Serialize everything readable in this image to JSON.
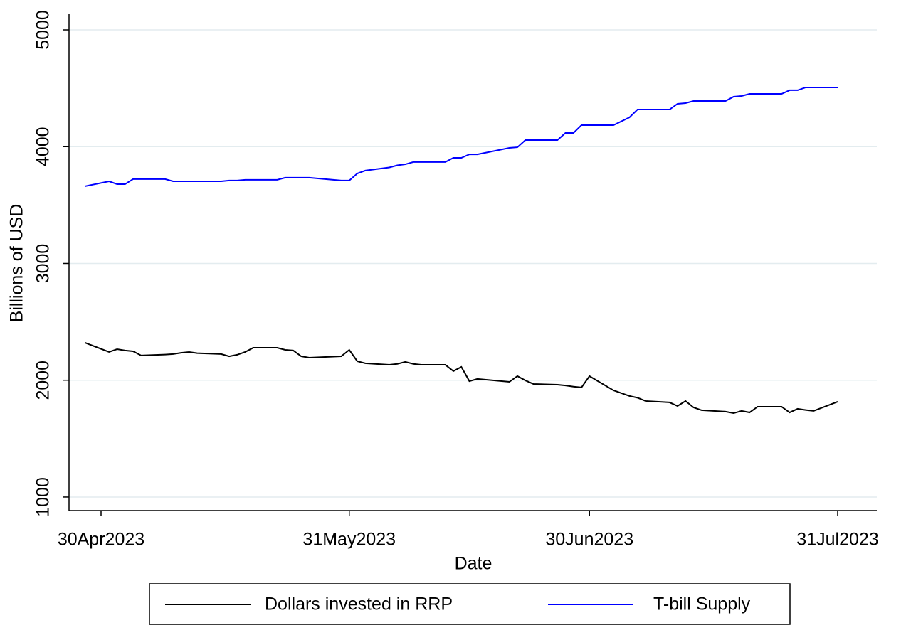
{
  "chart_data": {
    "type": "line",
    "x_label": "Date",
    "y_label": "Billions of USD",
    "x": [
      "2023-04-28",
      "2023-05-01",
      "2023-05-02",
      "2023-05-03",
      "2023-05-04",
      "2023-05-05",
      "2023-05-08",
      "2023-05-09",
      "2023-05-10",
      "2023-05-11",
      "2023-05-12",
      "2023-05-15",
      "2023-05-16",
      "2023-05-17",
      "2023-05-18",
      "2023-05-19",
      "2023-05-22",
      "2023-05-23",
      "2023-05-24",
      "2023-05-25",
      "2023-05-26",
      "2023-05-30",
      "2023-05-31",
      "2023-06-01",
      "2023-06-02",
      "2023-06-05",
      "2023-06-06",
      "2023-06-07",
      "2023-06-08",
      "2023-06-09",
      "2023-06-12",
      "2023-06-13",
      "2023-06-14",
      "2023-06-15",
      "2023-06-16",
      "2023-06-20",
      "2023-06-21",
      "2023-06-22",
      "2023-06-23",
      "2023-06-26",
      "2023-06-27",
      "2023-06-28",
      "2023-06-29",
      "2023-06-30",
      "2023-07-03",
      "2023-07-05",
      "2023-07-06",
      "2023-07-07",
      "2023-07-10",
      "2023-07-11",
      "2023-07-12",
      "2023-07-13",
      "2023-07-14",
      "2023-07-17",
      "2023-07-18",
      "2023-07-19",
      "2023-07-20",
      "2023-07-21",
      "2023-07-24",
      "2023-07-25",
      "2023-07-26",
      "2023-07-27",
      "2023-07-28",
      "2023-07-31"
    ],
    "series": [
      {
        "name": "Dollars invested in RRP",
        "color": "#000000",
        "values": [
          2321,
          2242,
          2266,
          2255,
          2248,
          2212,
          2220,
          2224,
          2235,
          2242,
          2232,
          2224,
          2205,
          2218,
          2242,
          2278,
          2278,
          2260,
          2255,
          2205,
          2193,
          2205,
          2260,
          2163,
          2145,
          2132,
          2140,
          2157,
          2140,
          2132,
          2132,
          2078,
          2114,
          1992,
          2011,
          1986,
          2035,
          1998,
          1968,
          1962,
          1955,
          1945,
          1938,
          2035,
          1913,
          1865,
          1850,
          1822,
          1810,
          1779,
          1822,
          1767,
          1743,
          1731,
          1718,
          1737,
          1724,
          1773,
          1773,
          1724,
          1755,
          1745,
          1737,
          1816
        ]
      },
      {
        "name": "T-bill Supply",
        "color": "#0000ff",
        "values": [
          3661,
          3703,
          3679,
          3679,
          3722,
          3722,
          3722,
          3703,
          3703,
          3703,
          3703,
          3703,
          3710,
          3710,
          3716,
          3716,
          3716,
          3734,
          3734,
          3734,
          3734,
          3710,
          3710,
          3770,
          3795,
          3822,
          3840,
          3849,
          3868,
          3868,
          3868,
          3904,
          3904,
          3934,
          3934,
          3989,
          3995,
          4056,
          4056,
          4056,
          4117,
          4117,
          4184,
          4184,
          4184,
          4251,
          4318,
          4318,
          4318,
          4367,
          4373,
          4391,
          4391,
          4391,
          4428,
          4434,
          4452,
          4452,
          4452,
          4483,
          4483,
          4507,
          4507,
          4507
        ]
      }
    ],
    "xlim": [
      "2023-04-26",
      "2023-08-04"
    ],
    "xticks": [
      {
        "value": "2023-04-30",
        "label": "30Apr2023"
      },
      {
        "value": "2023-05-31",
        "label": "31May2023"
      },
      {
        "value": "2023-06-30",
        "label": "30Jun2023"
      },
      {
        "value": "2023-07-31",
        "label": "31Jul2023"
      }
    ],
    "ylim": [
      884,
      5134
    ],
    "yticks": [
      1000,
      2000,
      3000,
      4000,
      5000
    ],
    "grid": true,
    "grid_color": "#e3ecef",
    "legend": "bottom"
  }
}
